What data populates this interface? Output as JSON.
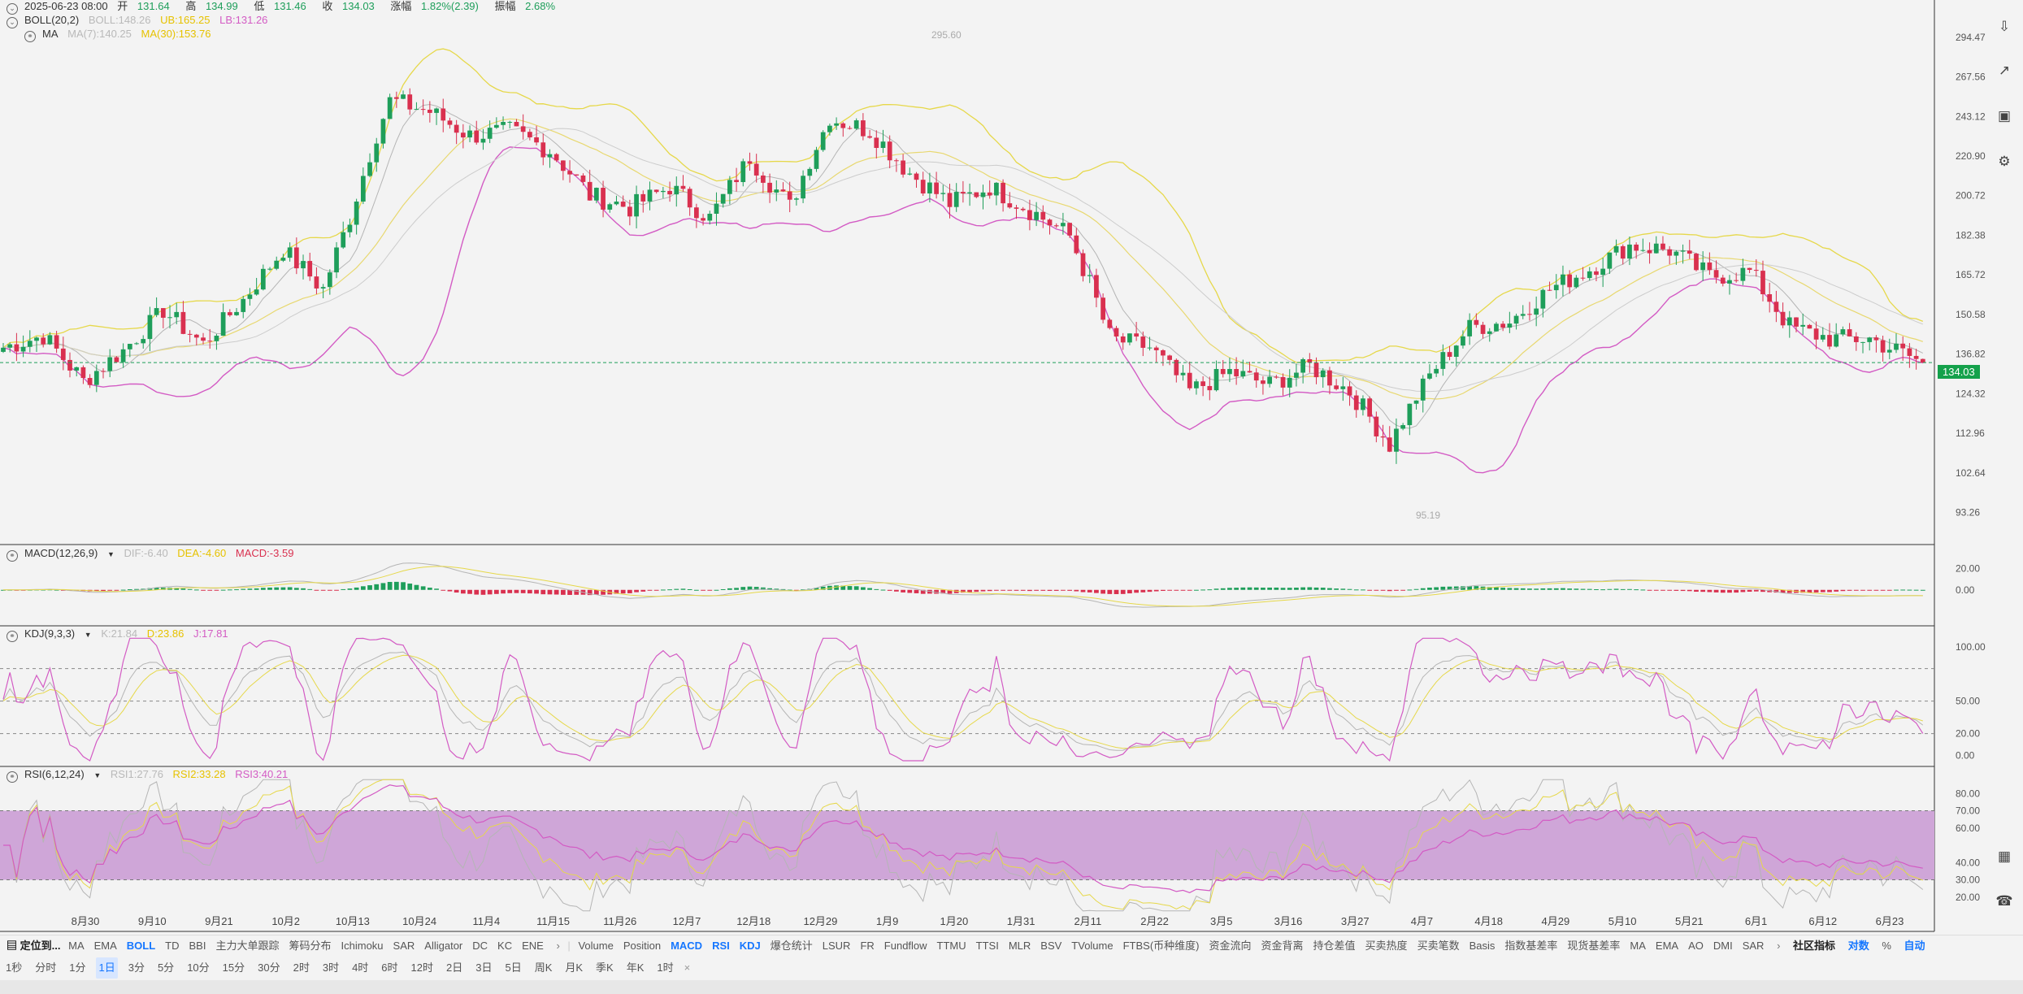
{
  "header": {
    "datetime": "2025-06-23 08:00",
    "open_label": "开",
    "open": "131.64",
    "high_label": "高",
    "high": "134.99",
    "low_label": "低",
    "low": "131.46",
    "close_label": "收",
    "close": "134.03",
    "change_label": "涨幅",
    "change": "1.82%(2.39)",
    "amp_label": "振幅",
    "amp": "2.68%",
    "boll_name": "BOLL(20,2)",
    "boll_mid": "BOLL:148.26",
    "boll_ub": "UB:165.25",
    "boll_lb": "LB:131.26",
    "ma_name": "MA",
    "ma7": "MA(7):140.25",
    "ma30": "MA(30):153.76"
  },
  "macd_header": {
    "name": "MACD(12,26,9)",
    "dif": "DIF:-6.40",
    "dea": "DEA:-4.60",
    "macd": "MACD:-3.59"
  },
  "kdj_header": {
    "name": "KDJ(9,3,3)",
    "k": "K:21.84",
    "d": "D:23.86",
    "j": "J:17.81"
  },
  "rsi_header": {
    "name": "RSI(6,12,24)",
    "rsi1": "RSI1:27.76",
    "rsi2": "RSI2:33.28",
    "rsi3": "RSI3:40.21"
  },
  "last_price": "134.03",
  "high_marker": "295.60",
  "low_marker": "95.19",
  "colors": {
    "up": "#1e9e5a",
    "down": "#d9304f",
    "yellow": "#e6d84a",
    "pink": "#d35bc4",
    "gray": "#b5b5b5",
    "rsi_band": "#cfa6d8"
  },
  "chart_data": [
    {
      "type": "candlestick",
      "title": "",
      "ylim": [
        88,
        305
      ],
      "y_ticks": [
        "294.47",
        "267.56",
        "243.12",
        "220.90",
        "200.72",
        "182.38",
        "165.72",
        "150.58",
        "136.82",
        "124.32",
        "112.96",
        "102.64",
        "93.26"
      ],
      "x_ticks": [
        "8月30",
        "9月10",
        "9月21",
        "10月2",
        "10月13",
        "10月24",
        "11月4",
        "11月15",
        "11月26",
        "12月7",
        "12月18",
        "12月29",
        "1月9",
        "1月20",
        "1月31",
        "2月11",
        "2月22",
        "3月5",
        "3月16",
        "3月27",
        "4月7",
        "4月18",
        "4月29",
        "5月10",
        "5月21",
        "6月1",
        "6月12",
        "6月23"
      ],
      "close_anchors": [
        [
          0,
          139
        ],
        [
          6,
          143
        ],
        [
          12,
          128
        ],
        [
          18,
          138
        ],
        [
          24,
          152
        ],
        [
          30,
          140
        ],
        [
          36,
          156
        ],
        [
          42,
          176
        ],
        [
          48,
          160
        ],
        [
          52,
          190
        ],
        [
          58,
          253
        ],
        [
          64,
          246
        ],
        [
          70,
          232
        ],
        [
          76,
          235
        ],
        [
          82,
          224
        ],
        [
          88,
          201
        ],
        [
          94,
          195
        ],
        [
          100,
          205
        ],
        [
          106,
          190
        ],
        [
          112,
          220
        ],
        [
          118,
          195
        ],
        [
          124,
          242
        ],
        [
          130,
          235
        ],
        [
          136,
          212
        ],
        [
          142,
          197
        ],
        [
          148,
          205
        ],
        [
          154,
          194
        ],
        [
          160,
          182
        ],
        [
          166,
          142
        ],
        [
          172,
          139
        ],
        [
          178,
          125
        ],
        [
          184,
          131
        ],
        [
          190,
          127
        ],
        [
          196,
          133
        ],
        [
          202,
          125
        ],
        [
          208,
          110
        ],
        [
          214,
          130
        ],
        [
          220,
          146
        ],
        [
          226,
          148
        ],
        [
          232,
          160
        ],
        [
          238,
          168
        ],
        [
          244,
          178
        ],
        [
          250,
          176
        ],
        [
          256,
          165
        ],
        [
          262,
          167
        ],
        [
          268,
          146
        ],
        [
          274,
          142
        ],
        [
          280,
          142
        ],
        [
          288,
          134
        ]
      ],
      "last_close": 134.03,
      "series": [
        {
          "name": "BOLL"
        },
        {
          "name": "MA"
        }
      ]
    },
    {
      "type": "bar",
      "title": "",
      "y_ticks": [
        "20.00",
        "0.00"
      ],
      "ylim": [
        -30,
        35
      ]
    },
    {
      "type": "line",
      "title": "",
      "y_ticks": [
        "100.00",
        "50.00",
        "20.00",
        "0.00"
      ],
      "ylim": [
        -8,
        112
      ]
    },
    {
      "type": "line",
      "title": "",
      "y_ticks": [
        "80.00",
        "70.00",
        "60.00",
        "40.00",
        "30.00",
        "20.00"
      ],
      "ylim": [
        10,
        90
      ]
    }
  ],
  "indicator_bar": {
    "lead": "定位到...",
    "left_items": [
      "MA",
      "EMA",
      "BOLL",
      "TD",
      "BBI",
      "主力大单跟踪",
      "筹码分布",
      "Ichimoku",
      "SAR",
      "Alligator",
      "DC",
      "KC",
      "ENE"
    ],
    "active_left": "BOLL",
    "right_items": [
      "Volume",
      "Position",
      "MACD",
      "RSI",
      "KDJ",
      "爆仓统计",
      "LSUR",
      "FR",
      "Fundflow",
      "TTMU",
      "TTSI",
      "MLR",
      "BSV",
      "TVolume",
      "FTBS(币种维度)",
      "资金流向",
      "资金背离",
      "持仓差值",
      "买卖热度",
      "买卖笔数",
      "Basis",
      "指数基差率",
      "现货基差率",
      "MA",
      "EMA",
      "AO",
      "DMI",
      "SAR"
    ],
    "active_right": [
      "MACD",
      "RSI",
      "KDJ"
    ],
    "community": "社区指标",
    "log": "对数",
    "pct": "%",
    "auto": "自动"
  },
  "timeframes": [
    "1秒",
    "分时",
    "1分",
    "1日",
    "3分",
    "5分",
    "10分",
    "15分",
    "30分",
    "2时",
    "3时",
    "4时",
    "6时",
    "12时",
    "2日",
    "3日",
    "5日",
    "周K",
    "月K",
    "季K",
    "年K",
    "1时"
  ],
  "selected_timeframe": "1日"
}
